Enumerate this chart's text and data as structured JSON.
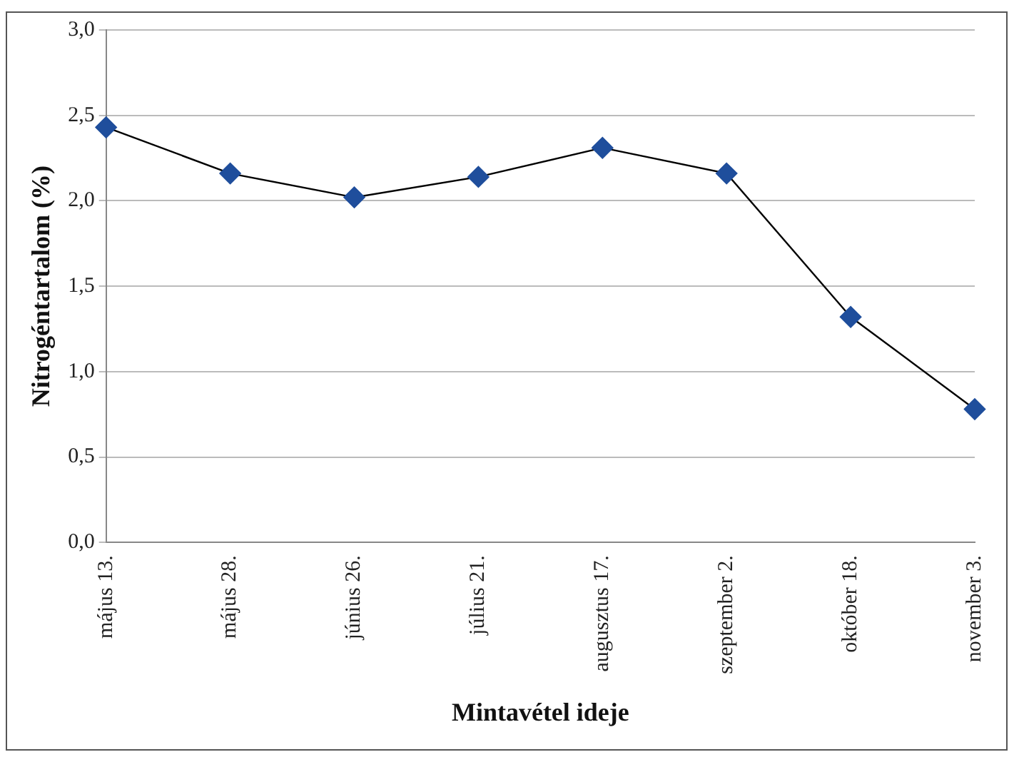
{
  "chart_data": {
    "type": "line",
    "xlabel": "Mintavétel ideje",
    "ylabel": "Nitrogéntartalom (%)",
    "categories": [
      "május 13.",
      "május 28.",
      "június 26.",
      "július 21.",
      "augusztus 17.",
      "szeptember 2.",
      "október 18.",
      "november 3."
    ],
    "series": [
      {
        "color": "#1f4e9c",
        "values": [
          2.43,
          2.16,
          2.02,
          2.14,
          2.31,
          2.16,
          1.32,
          0.78
        ]
      }
    ],
    "ylim": [
      0,
      3
    ],
    "yticks": [
      {
        "value": 0,
        "label": "0,0"
      },
      {
        "value": 0.5,
        "label": "0,5"
      },
      {
        "value": 1,
        "label": "1,0"
      },
      {
        "value": 1.5,
        "label": "1,5"
      },
      {
        "value": 2,
        "label": "2,0"
      },
      {
        "value": 2.5,
        "label": "2,5"
      },
      {
        "value": 3,
        "label": "3,0"
      }
    ],
    "grid": "y",
    "legend": false,
    "marker": "diamond",
    "line_style": "solid"
  }
}
